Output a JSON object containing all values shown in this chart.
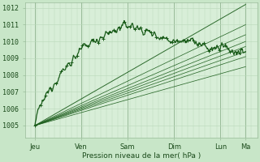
{
  "bg_color": "#c8e6c8",
  "plot_bg_color": "#d8eed8",
  "grid_color_minor": "#b8d8b8",
  "grid_color_major": "#99bb99",
  "line_color": "#1a5c1a",
  "ylabel_values": [
    1005,
    1006,
    1007,
    1008,
    1009,
    1010,
    1011,
    1012
  ],
  "ylim": [
    1004.3,
    1012.3
  ],
  "xlim": [
    0,
    240
  ],
  "xlabel": "Pression niveau de la mer( hPa )",
  "day_labels": [
    "Jeu",
    "Ven",
    "Sam",
    "Dim",
    "Lun",
    "Ma"
  ],
  "day_positions": [
    10,
    58,
    106,
    154,
    202,
    228
  ],
  "axis_fontsize": 6.5,
  "tick_fontsize": 6.0,
  "figsize": [
    3.2,
    2.0
  ],
  "dpi": 100
}
